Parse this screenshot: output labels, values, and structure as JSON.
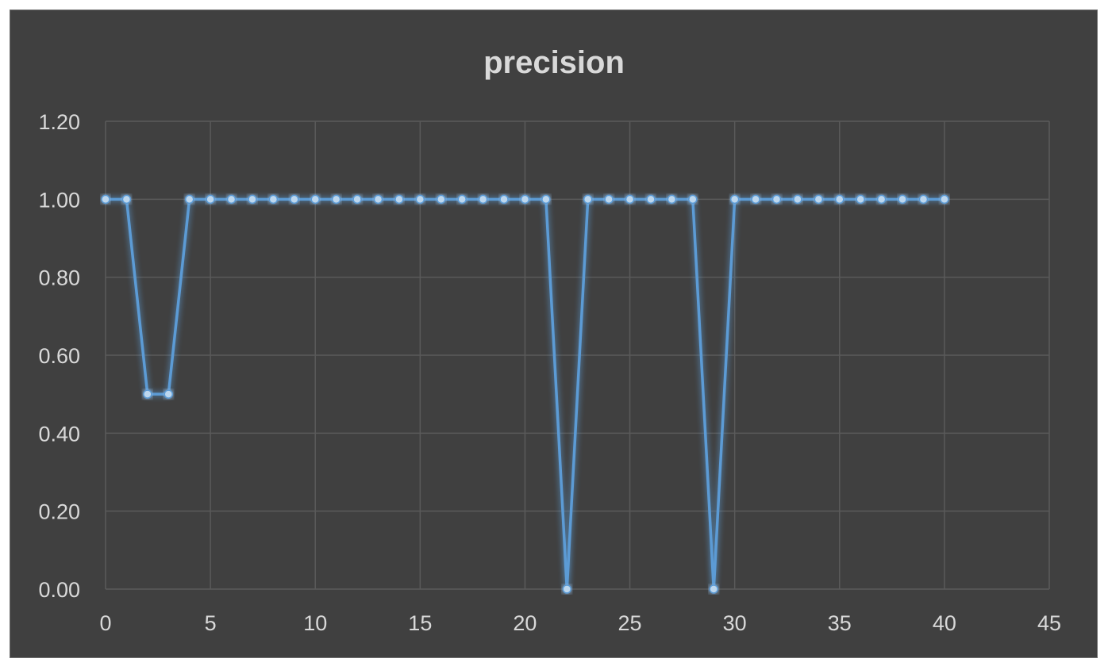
{
  "chart_data": {
    "type": "scatter",
    "title": "precision",
    "xlabel": "",
    "ylabel": "",
    "xlim": [
      0,
      45
    ],
    "ylim": [
      0,
      1.2
    ],
    "x_ticks": [
      "0",
      "5",
      "10",
      "15",
      "20",
      "25",
      "30",
      "35",
      "40",
      "45"
    ],
    "y_ticks": [
      "0.00",
      "0.20",
      "0.40",
      "0.60",
      "0.80",
      "1.00",
      "1.20"
    ],
    "grid": true,
    "legend": "none",
    "series": [
      {
        "line_color": "#5b9bd5",
        "marker_color": "#bdd7ee",
        "points": [
          [
            0,
            1
          ],
          [
            1,
            1
          ],
          [
            2,
            0.5
          ],
          [
            3,
            0.5
          ],
          [
            4,
            1
          ],
          [
            5,
            1
          ],
          [
            6,
            1
          ],
          [
            7,
            1
          ],
          [
            8,
            1
          ],
          [
            9,
            1
          ],
          [
            10,
            1
          ],
          [
            11,
            1
          ],
          [
            12,
            1
          ],
          [
            13,
            1
          ],
          [
            14,
            1
          ],
          [
            15,
            1
          ],
          [
            16,
            1
          ],
          [
            17,
            1
          ],
          [
            18,
            1
          ],
          [
            19,
            1
          ],
          [
            20,
            1
          ],
          [
            21,
            1
          ],
          [
            22,
            0
          ],
          [
            23,
            1
          ],
          [
            24,
            1
          ],
          [
            25,
            1
          ],
          [
            26,
            1
          ],
          [
            27,
            1
          ],
          [
            28,
            1
          ],
          [
            29,
            0
          ],
          [
            30,
            1
          ],
          [
            31,
            1
          ],
          [
            32,
            1
          ],
          [
            33,
            1
          ],
          [
            34,
            1
          ],
          [
            35,
            1
          ],
          [
            36,
            1
          ],
          [
            37,
            1
          ],
          [
            38,
            1
          ],
          [
            39,
            1
          ],
          [
            40,
            1
          ]
        ]
      }
    ]
  }
}
